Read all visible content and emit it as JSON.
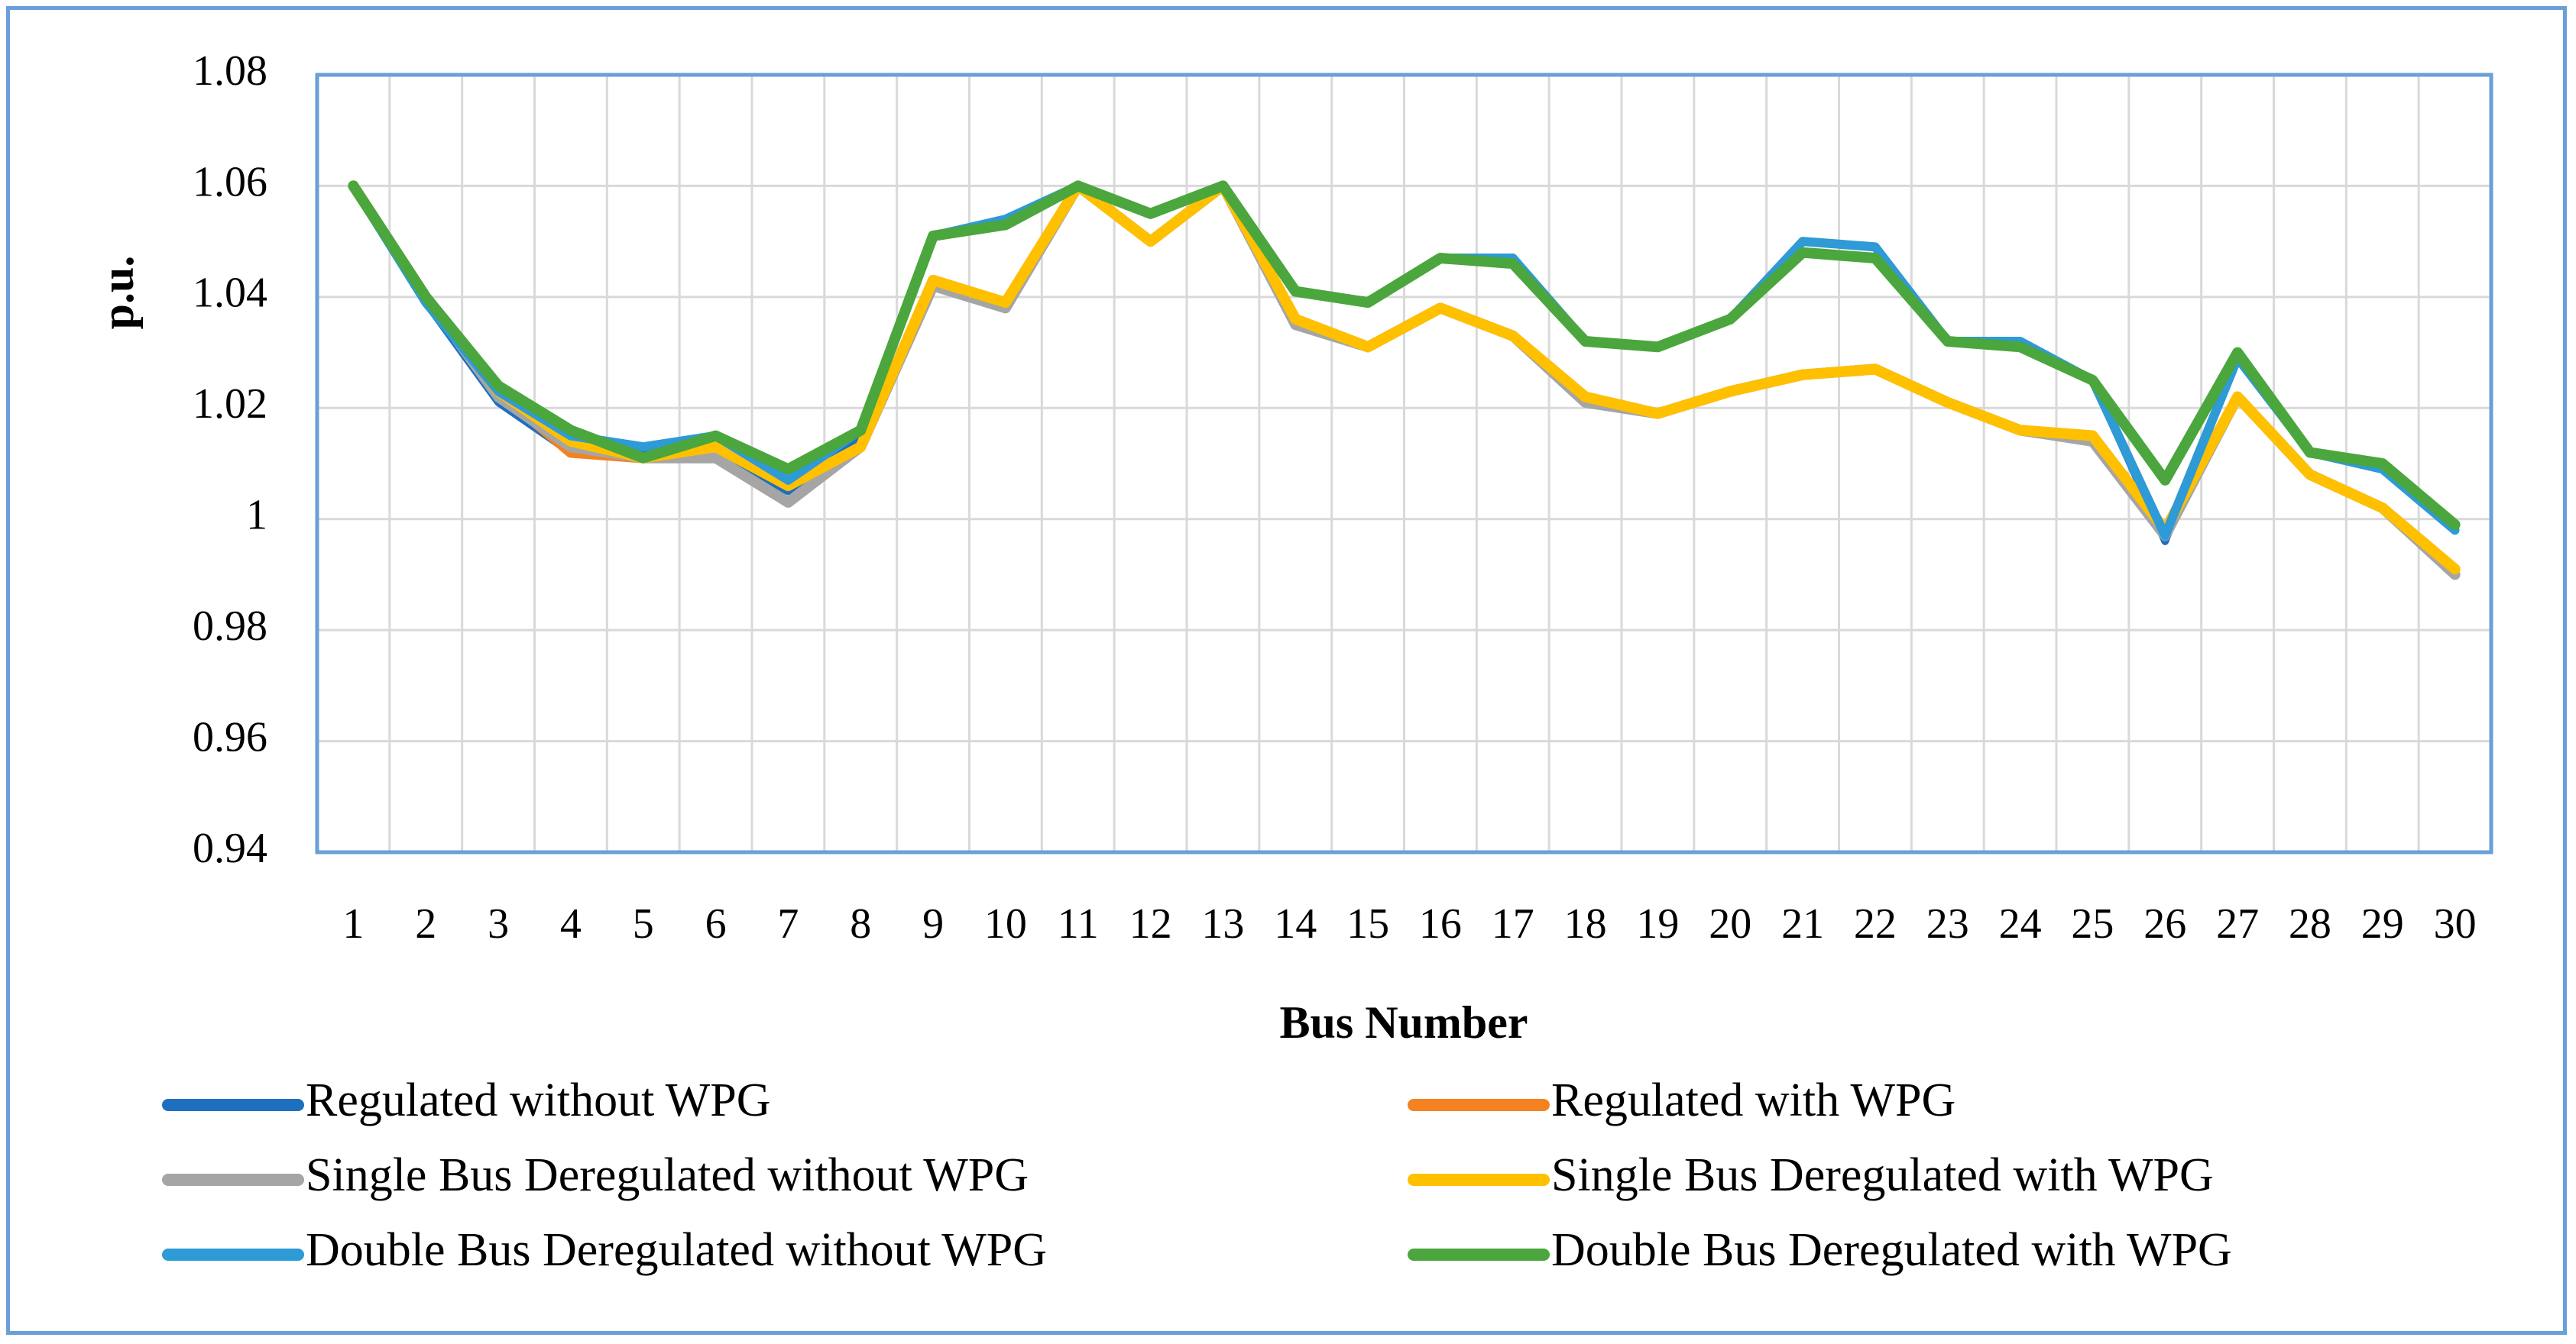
{
  "chart_data": {
    "type": "line",
    "title": "",
    "xlabel": "Bus Number",
    "ylabel": "p.u.",
    "ylim": [
      0.94,
      1.08
    ],
    "y_ticks": [
      "0.94",
      "0.96",
      "0.98",
      "1",
      "1.02",
      "1.04",
      "1.06",
      "1.08"
    ],
    "y_tick_values": [
      0.94,
      0.96,
      0.98,
      1.0,
      1.02,
      1.04,
      1.06,
      1.08
    ],
    "categories": [
      "1",
      "2",
      "3",
      "4",
      "5",
      "6",
      "7",
      "8",
      "9",
      "10",
      "11",
      "12",
      "13",
      "14",
      "15",
      "16",
      "17",
      "18",
      "19",
      "20",
      "21",
      "22",
      "23",
      "24",
      "25",
      "26",
      "27",
      "28",
      "29",
      "30"
    ],
    "grid": true,
    "legend_position": "bottom",
    "series": [
      {
        "name": "Regulated without WPG",
        "color": "#1f6fbf",
        "values": [
          1.06,
          1.039,
          1.021,
          1.012,
          1.012,
          1.011,
          1.005,
          1.015,
          1.051,
          1.054,
          1.06,
          1.055,
          1.06,
          1.041,
          1.039,
          1.047,
          1.047,
          1.032,
          1.031,
          1.036,
          1.05,
          1.049,
          1.032,
          1.032,
          1.025,
          0.996,
          1.029,
          1.012,
          1.009,
          0.998
        ]
      },
      {
        "name": "Regulated with WPG",
        "color": "#f58220",
        "values": [
          1.06,
          1.04,
          1.023,
          1.012,
          1.011,
          1.013,
          1.006,
          1.013,
          1.043,
          1.039,
          1.06,
          1.05,
          1.06,
          1.036,
          1.031,
          1.038,
          1.033,
          1.022,
          1.019,
          1.023,
          1.026,
          1.027,
          1.021,
          1.016,
          1.015,
          0.998,
          1.022,
          1.008,
          1.002,
          0.991
        ]
      },
      {
        "name": "Single Bus Deregulated without WPG",
        "color": "#a5a5a5",
        "values": [
          1.06,
          1.04,
          1.022,
          1.013,
          1.011,
          1.011,
          1.003,
          1.013,
          1.042,
          1.038,
          1.06,
          1.05,
          1.06,
          1.035,
          1.031,
          1.038,
          1.033,
          1.021,
          1.019,
          1.023,
          1.026,
          1.027,
          1.021,
          1.016,
          1.014,
          0.997,
          1.022,
          1.008,
          1.002,
          0.99
        ]
      },
      {
        "name": "Single Bus Deregulated with WPG",
        "color": "#ffc000",
        "values": [
          1.06,
          1.04,
          1.023,
          1.014,
          1.011,
          1.013,
          1.006,
          1.013,
          1.043,
          1.039,
          1.06,
          1.05,
          1.06,
          1.036,
          1.031,
          1.038,
          1.033,
          1.022,
          1.019,
          1.023,
          1.026,
          1.027,
          1.021,
          1.016,
          1.015,
          0.998,
          1.022,
          1.008,
          1.002,
          0.991
        ]
      },
      {
        "name": "Double Bus Deregulated without WPG",
        "color": "#2e9ad6",
        "values": [
          1.06,
          1.039,
          1.023,
          1.015,
          1.013,
          1.015,
          1.007,
          1.016,
          1.051,
          1.054,
          1.06,
          1.055,
          1.06,
          1.041,
          1.039,
          1.047,
          1.047,
          1.032,
          1.031,
          1.036,
          1.05,
          1.049,
          1.032,
          1.032,
          1.025,
          0.997,
          1.029,
          1.012,
          1.009,
          0.998
        ]
      },
      {
        "name": "Double Bus Deregulated with WPG",
        "color": "#4aa63d",
        "values": [
          1.06,
          1.04,
          1.024,
          1.016,
          1.011,
          1.015,
          1.009,
          1.016,
          1.051,
          1.053,
          1.06,
          1.055,
          1.06,
          1.041,
          1.039,
          1.047,
          1.046,
          1.032,
          1.031,
          1.036,
          1.048,
          1.047,
          1.032,
          1.031,
          1.025,
          1.007,
          1.03,
          1.012,
          1.01,
          0.999
        ]
      }
    ]
  },
  "colors": {
    "frame_border": "#6a9fd8",
    "grid": "#d9d9d9",
    "plot_border": "#6a9fd8"
  }
}
